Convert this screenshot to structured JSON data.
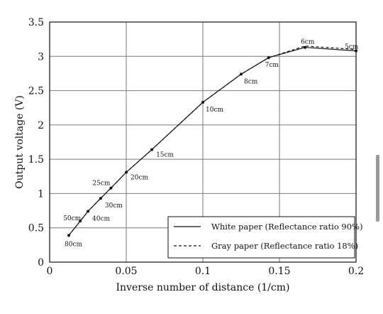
{
  "chart_data": {
    "type": "line",
    "xlabel": "Inverse number of distance (1/cm)",
    "ylabel": "Output voltage (V)",
    "xlim": [
      0,
      0.2
    ],
    "ylim": [
      0,
      3.5
    ],
    "x_ticks": [
      "0",
      "0.05",
      "0.1",
      "0.15",
      "0.2"
    ],
    "y_ticks": [
      "0",
      "0.5",
      "1",
      "1.5",
      "2",
      "2.5",
      "3",
      "3.5"
    ],
    "grid": true,
    "legend_position": "bottom-right",
    "series": [
      {
        "name": "White paper (Reflectance ratio 90%)",
        "style": "solid",
        "x": [
          0.0125,
          0.02,
          0.025,
          0.0333,
          0.04,
          0.05,
          0.0667,
          0.1,
          0.125,
          0.1429,
          0.1667,
          0.2
        ],
        "y": [
          0.39,
          0.6,
          0.74,
          0.93,
          1.08,
          1.31,
          1.64,
          2.33,
          2.74,
          2.98,
          3.13,
          3.08
        ]
      },
      {
        "name": "Gray paper (Reflectance ratio 18%)",
        "style": "dashed",
        "x": [
          0.0125,
          0.02,
          0.025,
          0.0333,
          0.04,
          0.05,
          0.0667,
          0.1,
          0.125,
          0.1429,
          0.1667,
          0.2
        ],
        "y": [
          0.39,
          0.6,
          0.74,
          0.93,
          1.08,
          1.31,
          1.64,
          2.33,
          2.74,
          2.98,
          3.15,
          3.1
        ]
      }
    ],
    "annotations": [
      {
        "text": "80cm",
        "x": 0.0125,
        "y": 0.39
      },
      {
        "text": "50cm",
        "x": 0.02,
        "y": 0.6
      },
      {
        "text": "40cm",
        "x": 0.025,
        "y": 0.74
      },
      {
        "text": "30cm",
        "x": 0.0333,
        "y": 0.93
      },
      {
        "text": "25cm",
        "x": 0.04,
        "y": 1.08
      },
      {
        "text": "20cm",
        "x": 0.05,
        "y": 1.31
      },
      {
        "text": "15cm",
        "x": 0.0667,
        "y": 1.64
      },
      {
        "text": "10cm",
        "x": 0.1,
        "y": 2.33
      },
      {
        "text": "8cm",
        "x": 0.125,
        "y": 2.74
      },
      {
        "text": "7cm",
        "x": 0.1429,
        "y": 2.98
      },
      {
        "text": "6cm",
        "x": 0.1667,
        "y": 3.13
      },
      {
        "text": "5cm",
        "x": 0.2,
        "y": 3.08
      }
    ]
  }
}
